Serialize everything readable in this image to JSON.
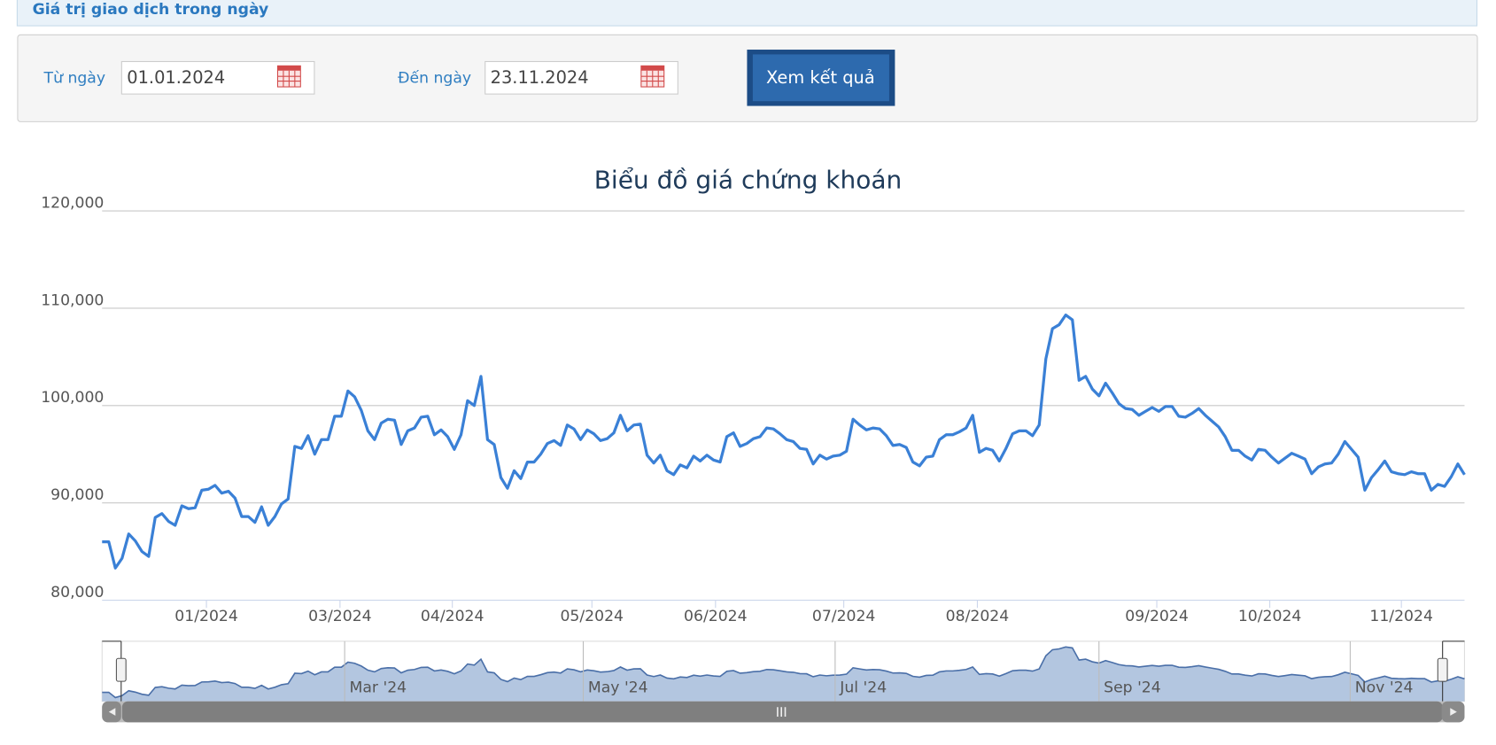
{
  "header": {
    "title": "Giá trị giao dịch trong ngày"
  },
  "form": {
    "from_label": "Từ ngày",
    "from_value": "01.01.2024",
    "to_label": "Đến ngày",
    "to_value": "23.11.2024",
    "button": "Xem kết quả"
  },
  "chart_data": {
    "type": "line",
    "title": "Biểu đồ giá chứng khoán",
    "color": "#3a80d6",
    "values": [
      86000,
      86000,
      83300,
      84300,
      86800,
      86100,
      85000,
      84500,
      88500,
      88900,
      88100,
      87700,
      89700,
      89400,
      89500,
      91300,
      91400,
      91800,
      91000,
      91200,
      90500,
      88600,
      88600,
      88000,
      89600,
      87700,
      88600,
      89900,
      90400,
      95800,
      95600,
      96900,
      95000,
      96500,
      96500,
      98900,
      98900,
      101500,
      100900,
      99500,
      97400,
      96500,
      98200,
      98600,
      98500,
      96000,
      97400,
      97700,
      98800,
      98900,
      97000,
      97500,
      96800,
      95500,
      97000,
      100500,
      100000,
      103000,
      96500,
      96000,
      92600,
      91500,
      93300,
      92500,
      94200,
      94200,
      95000,
      96100,
      96400,
      95900,
      98000,
      97600,
      96500,
      97500,
      97100,
      96400,
      96600,
      97200,
      99000,
      97400,
      98000,
      98100,
      94900,
      94100,
      94900,
      93300,
      92900,
      93900,
      93600,
      94800,
      94300,
      94900,
      94400,
      94200,
      96800,
      97200,
      95800,
      96100,
      96600,
      96800,
      97700,
      97600,
      97100,
      96500,
      96300,
      95600,
      95500,
      94000,
      94900,
      94500,
      94800,
      94900,
      95300,
      98600,
      98000,
      97500,
      97700,
      97600,
      96900,
      95900,
      96000,
      95700,
      94200,
      93800,
      94700,
      94800,
      96500,
      97000,
      97000,
      97300,
      97700,
      99000,
      95200,
      95600,
      95400,
      94300,
      95600,
      97100,
      97400,
      97400,
      96900,
      98000,
      104800,
      107900,
      108300,
      109300,
      108800,
      102600,
      103000,
      101700,
      101000,
      102300,
      101300,
      100200,
      99700,
      99600,
      99000,
      99400,
      99800,
      99400,
      99900,
      99900,
      98900,
      98800,
      99200,
      99700,
      99000,
      98400,
      97800,
      96800,
      95400,
      95400,
      94800,
      94400,
      95500,
      95400,
      94700,
      94100,
      94600,
      95100,
      94800,
      94500,
      93000,
      93700,
      94000,
      94100,
      95000,
      96300,
      95500,
      94700,
      91300,
      92600,
      93400,
      94300,
      93200,
      93000,
      92900,
      93200,
      93000,
      93000,
      91300,
      91900,
      91700,
      92700,
      94000,
      92900
    ],
    "xlim": [
      0,
      205
    ],
    "xticks": [
      {
        "value": 15.7,
        "label": "01/2024"
      },
      {
        "value": 35.8,
        "label": "03/2024"
      },
      {
        "value": 52.7,
        "label": "04/2024"
      },
      {
        "value": 73.7,
        "label": "05/2024"
      },
      {
        "value": 92.3,
        "label": "06/2024"
      },
      {
        "value": 111.6,
        "label": "07/2024"
      },
      {
        "value": 131.7,
        "label": "08/2024"
      },
      {
        "value": 158.7,
        "label": "09/2024"
      },
      {
        "value": 175.7,
        "label": "10/2024"
      },
      {
        "value": 195.5,
        "label": "11/2024"
      }
    ],
    "ylim": [
      80000,
      120000
    ],
    "yticks": [
      {
        "value": 80000,
        "label": "80,000"
      },
      {
        "value": 90000,
        "label": "90,000"
      },
      {
        "value": 100000,
        "label": "100,000"
      },
      {
        "value": 110000,
        "label": "110,000"
      },
      {
        "value": 120000,
        "label": "120,000"
      }
    ],
    "grid": true,
    "navigator": {
      "xticks": [
        {
          "value": 36.5,
          "label": "Mar '24"
        },
        {
          "value": 72.4,
          "label": "May '24"
        },
        {
          "value": 110.3,
          "label": "Jul '24"
        },
        {
          "value": 150.0,
          "label": "Sep '24"
        },
        {
          "value": 187.8,
          "label": "Nov '24"
        }
      ]
    }
  }
}
